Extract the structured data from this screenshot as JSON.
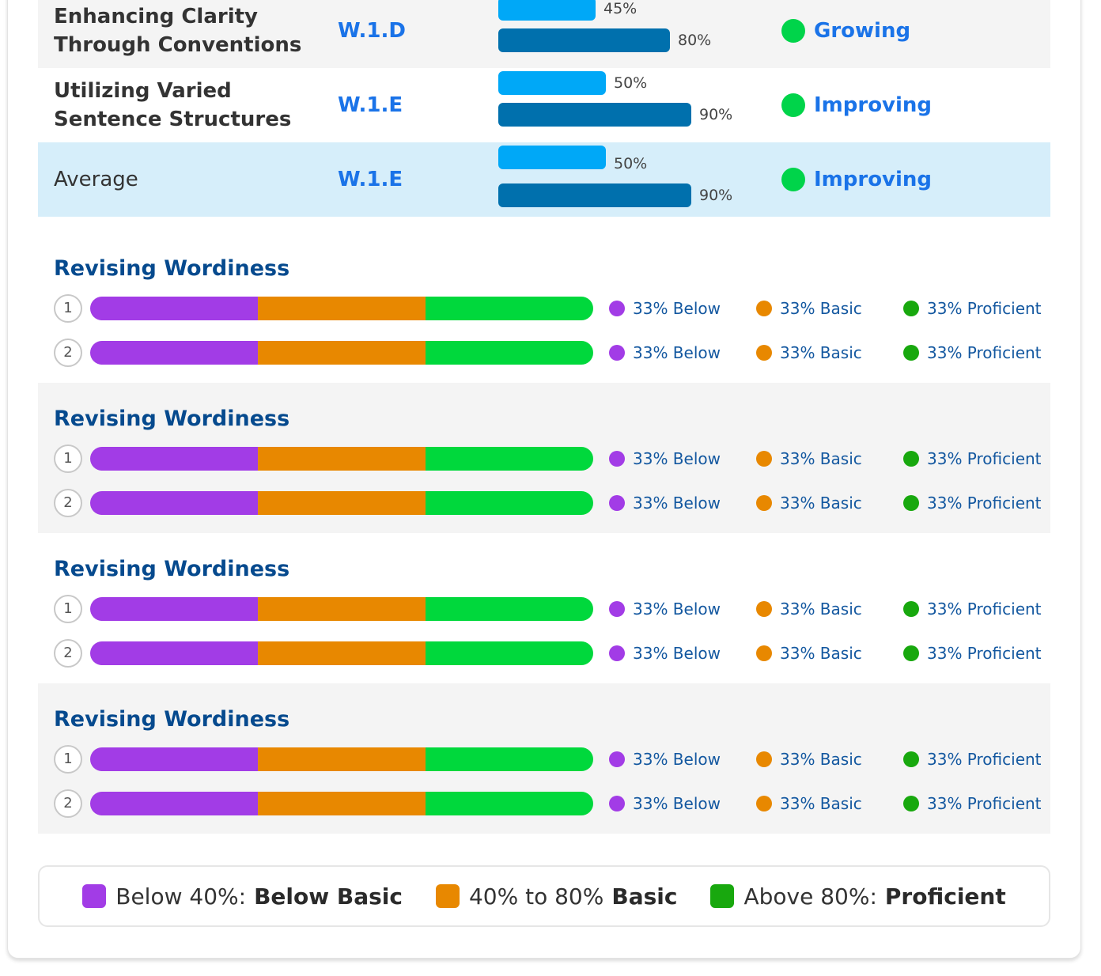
{
  "colors": {
    "light_bar": "#00a8f7",
    "dark_bar": "#0070ad",
    "status_dot": "#00d44a",
    "code_text": "#1a73e8",
    "below": "#a23ce6",
    "basic": "#e88800",
    "proficient": "#00d83c",
    "title_blue": "#064a8e"
  },
  "skills": [
    {
      "name": "Enhancing Clarity Through Conventions",
      "code": "W.1.D",
      "light_value": 45,
      "light_label": "45%",
      "dark_value": 80,
      "dark_label": "80%",
      "status": "Growing",
      "status_icon": "green-dot-icon"
    },
    {
      "name": "Utilizing Varied Sentence Structures",
      "code": "W.1.E",
      "light_value": 50,
      "light_label": "50%",
      "dark_value": 90,
      "dark_label": "90%",
      "status": "Improving",
      "status_icon": "green-dot-icon"
    },
    {
      "name": "Average",
      "code": "W.1.E",
      "light_value": 50,
      "light_label": "50%",
      "dark_value": 90,
      "dark_label": "90%",
      "status": "Improving",
      "status_icon": "green-dot-icon"
    }
  ],
  "groups": [
    {
      "title": "Revising Wordiness",
      "rows": [
        {
          "number": "1",
          "below": 33,
          "basic": 33,
          "proficient": 33,
          "below_label": "33% Below",
          "basic_label": "33% Basic",
          "proficient_label": "33% Proficient"
        },
        {
          "number": "2",
          "below": 33,
          "basic": 33,
          "proficient": 33,
          "below_label": "33% Below",
          "basic_label": "33% Basic",
          "proficient_label": "33% Proficient"
        }
      ]
    },
    {
      "title": "Revising Wordiness",
      "rows": [
        {
          "number": "1",
          "below": 33,
          "basic": 33,
          "proficient": 33,
          "below_label": "33% Below",
          "basic_label": "33% Basic",
          "proficient_label": "33% Proficient"
        },
        {
          "number": "2",
          "below": 33,
          "basic": 33,
          "proficient": 33,
          "below_label": "33% Below",
          "basic_label": "33% Basic",
          "proficient_label": "33% Proficient"
        }
      ]
    },
    {
      "title": "Revising Wordiness",
      "rows": [
        {
          "number": "1",
          "below": 33,
          "basic": 33,
          "proficient": 33,
          "below_label": "33% Below",
          "basic_label": "33% Basic",
          "proficient_label": "33% Proficient"
        },
        {
          "number": "2",
          "below": 33,
          "basic": 33,
          "proficient": 33,
          "below_label": "33% Below",
          "basic_label": "33% Basic",
          "proficient_label": "33% Proficient"
        }
      ]
    },
    {
      "title": "Revising Wordiness",
      "rows": [
        {
          "number": "1",
          "below": 33,
          "basic": 33,
          "proficient": 33,
          "below_label": "33% Below",
          "basic_label": "33% Basic",
          "proficient_label": "33% Proficient"
        },
        {
          "number": "2",
          "below": 33,
          "basic": 33,
          "proficient": 33,
          "below_label": "33% Below",
          "basic_label": "33% Basic",
          "proficient_label": "33% Proficient"
        }
      ]
    }
  ],
  "key": [
    {
      "range": "Below 40%:",
      "label": "Below Basic",
      "swatch": "below"
    },
    {
      "range": "40% to 80%",
      "label": "Basic",
      "swatch": "basic"
    },
    {
      "range": "Above 80%:",
      "label": "Proficient",
      "swatch": "prof"
    }
  ]
}
